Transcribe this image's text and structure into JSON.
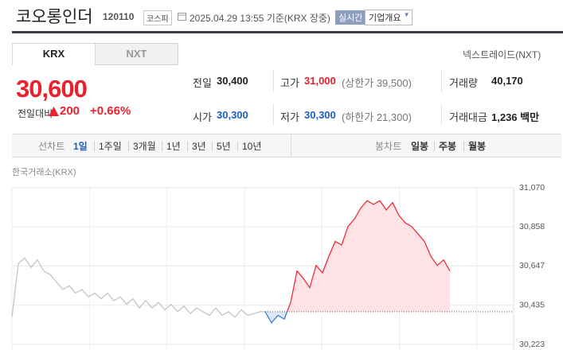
{
  "header": {
    "name": "코오롱인더",
    "code": "120110",
    "market": "코스피",
    "timestamp": "2025.04.29 13:55 기준(KRX 장중)",
    "realtime": "실시간",
    "overview": "기업개요"
  },
  "tabs": {
    "items": [
      "KRX",
      "NXT"
    ],
    "right": "넥스트레이드(NXT)"
  },
  "price": {
    "current": "30,600",
    "change_label": "전일대비",
    "change": "200",
    "change_pct": "+0.66%"
  },
  "stats": [
    {
      "label": "전일",
      "value": "30,400"
    },
    {
      "label": "고가",
      "value": "31,000",
      "note": "(상한가 39,500)"
    },
    {
      "label": "거래량",
      "value": "40,170"
    },
    {
      "label": "시가",
      "value": "30,300"
    },
    {
      "label": "저가",
      "value": "30,300",
      "note": "(하한가 21,300)"
    },
    {
      "label": "거래대금",
      "value": "1,236 백만"
    }
  ],
  "period_bar": {
    "line_label": "선차트",
    "line_options": [
      "1일",
      "1주일",
      "3개월",
      "1년",
      "3년",
      "5년",
      "10년"
    ],
    "candle_label": "봉차트",
    "candle_options": [
      "일봉",
      "주봉",
      "월봉"
    ]
  },
  "chart_data": {
    "type": "line",
    "subtitle": "한국거래소(KRX)",
    "ylim": [
      30223,
      31070
    ],
    "yticks": [
      {
        "value": 31070,
        "label": "31,070"
      },
      {
        "value": 30858,
        "label": "30,858"
      },
      {
        "value": 30647,
        "label": "30,647"
      },
      {
        "value": 30435,
        "label": "30,435"
      },
      {
        "value": 30223,
        "label": "30,223"
      }
    ],
    "baseline": 30400,
    "grid": true,
    "series": [
      {
        "color": "#c4c4c4",
        "values": [
          30370,
          30660,
          30690,
          30640,
          30680,
          30620,
          30600,
          30560,
          30520,
          30540,
          30500,
          30520,
          30480,
          30500,
          30470,
          30500,
          30460,
          30480,
          30440,
          30470,
          30420,
          30460,
          30420,
          30450,
          30410,
          30440,
          30400,
          30430,
          30390,
          30420,
          30400,
          30380,
          30420,
          30380,
          30400,
          30370,
          30410,
          30380,
          30390,
          30400,
          30400
        ]
      },
      {
        "color": "#ee2b3b",
        "color_below": "#3a7fd5",
        "values": [
          30400,
          30340,
          30380,
          30360,
          30450,
          30620,
          30580,
          30530,
          30650,
          30610,
          30700,
          30780,
          30760,
          30860,
          30900,
          30960,
          31000,
          30980,
          31000,
          30950,
          30990,
          30920,
          30880,
          30860,
          30820,
          30780,
          30700,
          30650,
          30680,
          30620
        ]
      }
    ]
  }
}
